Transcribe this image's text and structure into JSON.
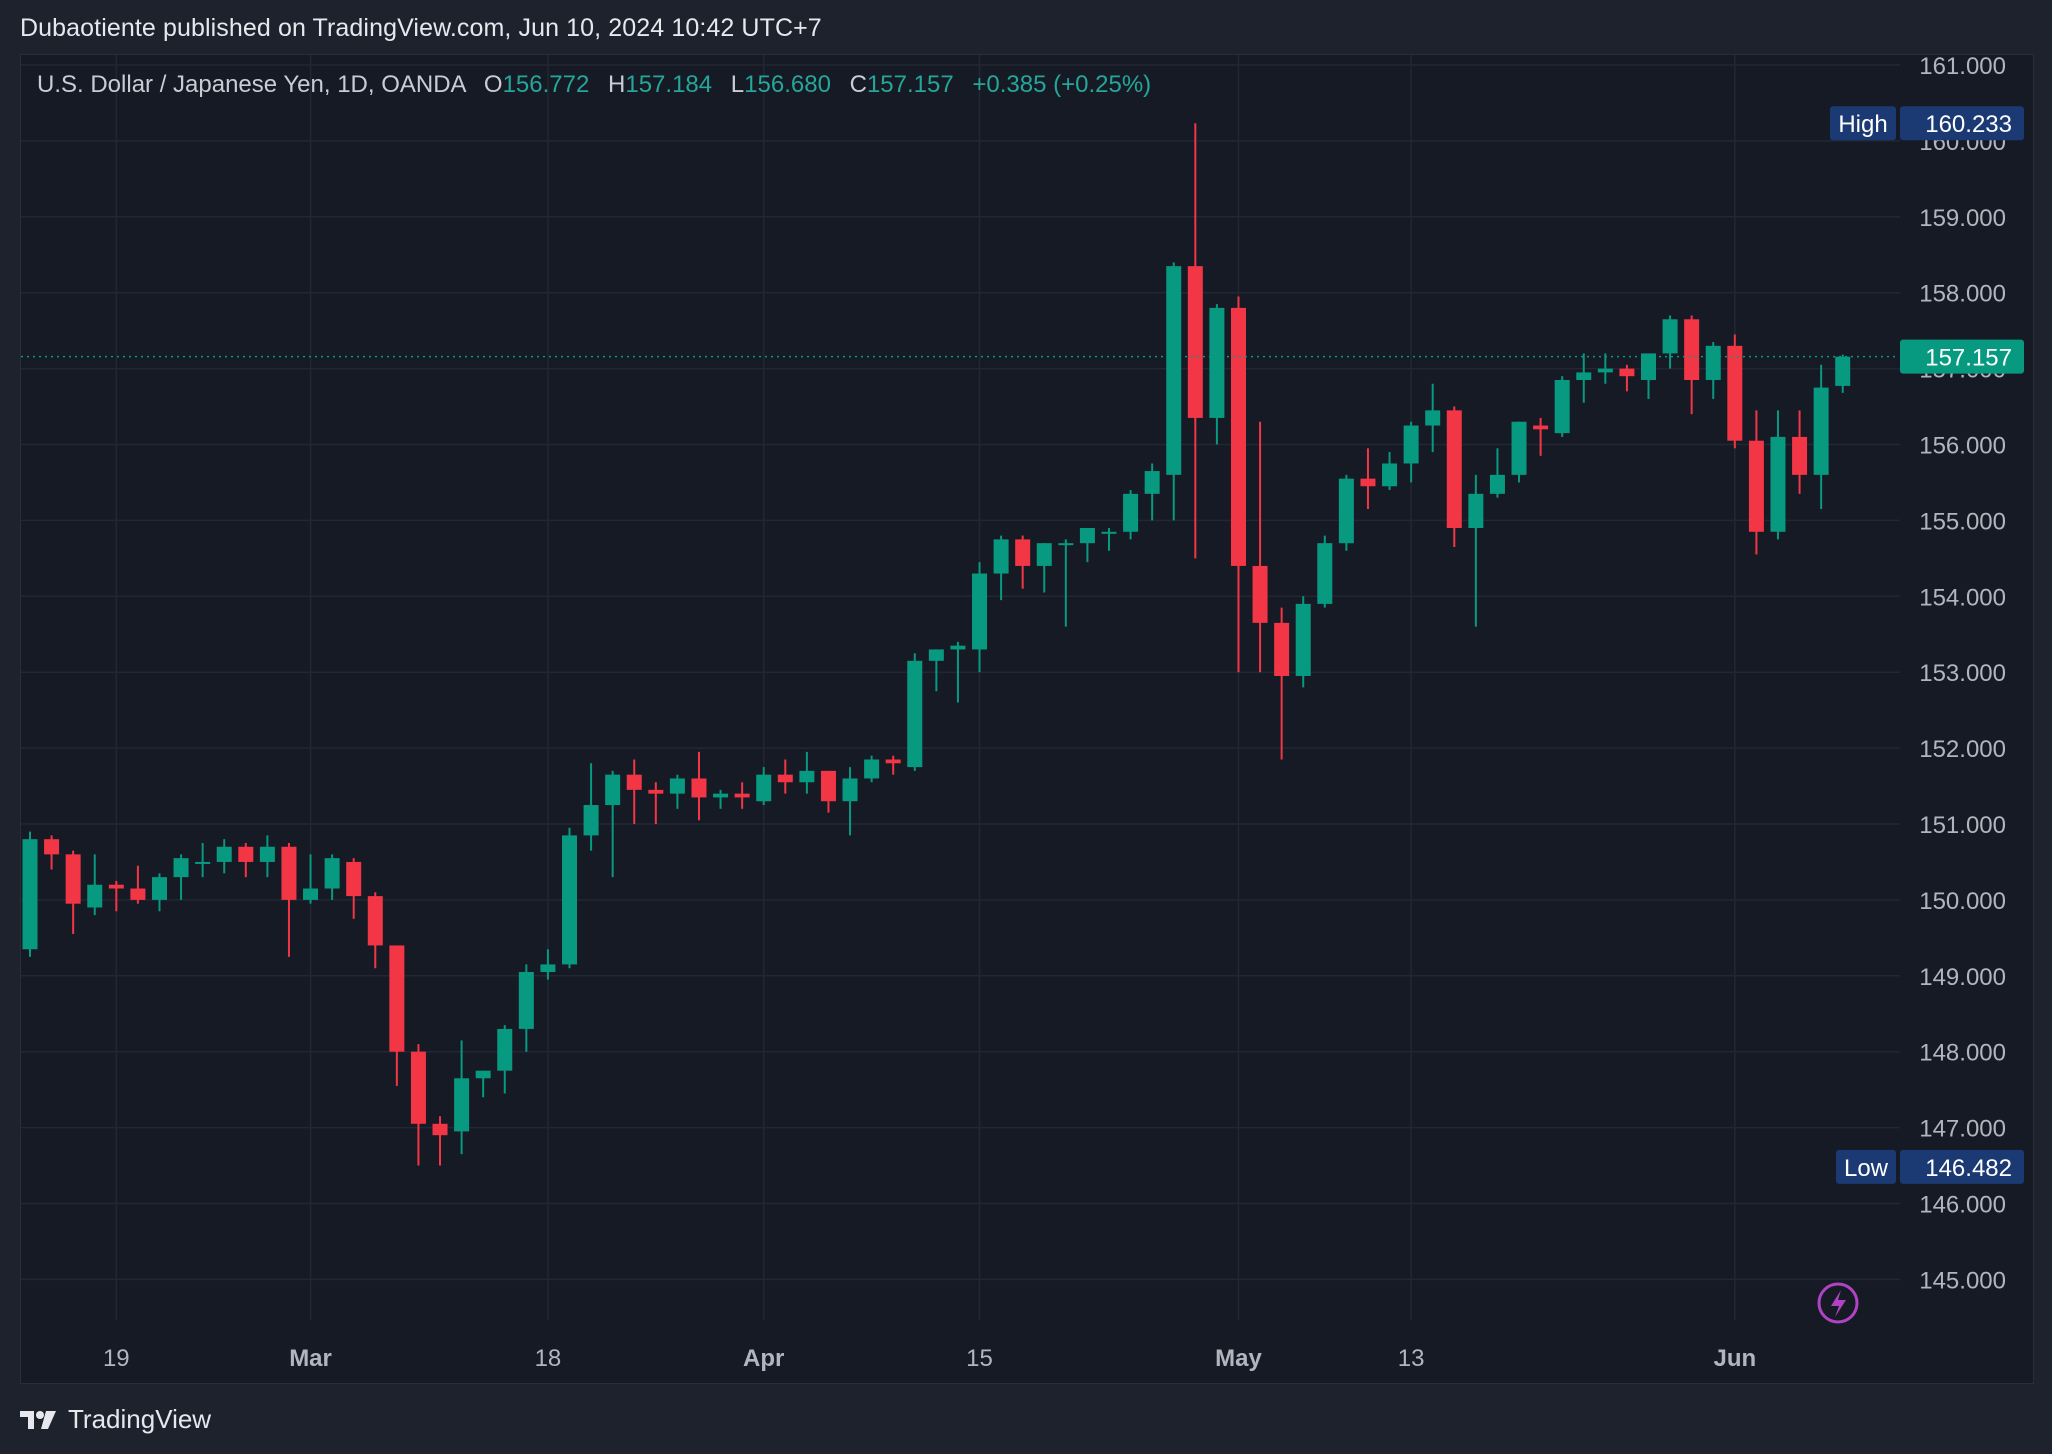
{
  "header": {
    "publisher_line": "Dubaotiente published on TradingView.com, Jun 10, 2024 10:42 UTC+7"
  },
  "legend": {
    "symbol": "U.S. Dollar / Japanese Yen, 1D, OANDA",
    "o_label": "O",
    "o_value": "156.772",
    "h_label": "H",
    "h_value": "157.184",
    "l_label": "L",
    "l_value": "156.680",
    "c_label": "C",
    "c_value": "157.157",
    "change": "+0.385 (+0.25%)"
  },
  "badges": {
    "high_label": "High",
    "high_value": "160.233",
    "low_label": "Low",
    "low_value": "146.482",
    "last_price": "157.157"
  },
  "footer": {
    "brand": "TradingView"
  },
  "colors": {
    "up": "#089981",
    "down": "#f23645",
    "background": "#161a25",
    "grid": "#232733",
    "badge": "#1b3a73",
    "last_price": "#089981"
  },
  "chart_data": {
    "type": "candlestick",
    "ylim": [
      144.2,
      161.4
    ],
    "y_ticks": [
      "145.000",
      "146.000",
      "147.000",
      "148.000",
      "149.000",
      "150.000",
      "151.000",
      "152.000",
      "153.000",
      "154.000",
      "155.000",
      "156.000",
      "157.000",
      "158.000",
      "159.000",
      "160.000",
      "161.000"
    ],
    "x_tick_labels": [
      {
        "label": "19",
        "index": 4
      },
      {
        "label": "Mar",
        "index": 13
      },
      {
        "label": "18",
        "index": 24
      },
      {
        "label": "Apr",
        "index": 34
      },
      {
        "label": "15",
        "index": 44
      },
      {
        "label": "May",
        "index": 56
      },
      {
        "label": "13",
        "index": 64
      },
      {
        "label": "Jun",
        "index": 79
      }
    ],
    "candles": [
      {
        "o": 149.35,
        "h": 150.9,
        "l": 149.25,
        "c": 150.8
      },
      {
        "o": 150.8,
        "h": 150.85,
        "l": 150.4,
        "c": 150.6
      },
      {
        "o": 150.6,
        "h": 150.65,
        "l": 149.55,
        "c": 149.95
      },
      {
        "o": 149.9,
        "h": 150.6,
        "l": 149.8,
        "c": 150.2
      },
      {
        "o": 150.2,
        "h": 150.25,
        "l": 149.85,
        "c": 150.15
      },
      {
        "o": 150.15,
        "h": 150.45,
        "l": 149.95,
        "c": 150.0
      },
      {
        "o": 150.0,
        "h": 150.35,
        "l": 149.85,
        "c": 150.3
      },
      {
        "o": 150.3,
        "h": 150.6,
        "l": 150.0,
        "c": 150.55
      },
      {
        "o": 150.5,
        "h": 150.75,
        "l": 150.3,
        "c": 150.5
      },
      {
        "o": 150.5,
        "h": 150.8,
        "l": 150.35,
        "c": 150.7
      },
      {
        "o": 150.7,
        "h": 150.75,
        "l": 150.3,
        "c": 150.5
      },
      {
        "o": 150.5,
        "h": 150.85,
        "l": 150.3,
        "c": 150.7
      },
      {
        "o": 150.7,
        "h": 150.75,
        "l": 149.25,
        "c": 150.0
      },
      {
        "o": 150.0,
        "h": 150.6,
        "l": 149.95,
        "c": 150.15
      },
      {
        "o": 150.15,
        "h": 150.6,
        "l": 150.0,
        "c": 150.55
      },
      {
        "o": 150.5,
        "h": 150.55,
        "l": 149.75,
        "c": 150.05
      },
      {
        "o": 150.05,
        "h": 150.1,
        "l": 149.1,
        "c": 149.4
      },
      {
        "o": 149.4,
        "h": 149.4,
        "l": 147.55,
        "c": 148.0
      },
      {
        "o": 148.0,
        "h": 148.1,
        "l": 146.5,
        "c": 147.05
      },
      {
        "o": 147.05,
        "h": 147.15,
        "l": 146.5,
        "c": 146.9
      },
      {
        "o": 146.95,
        "h": 148.15,
        "l": 146.65,
        "c": 147.65
      },
      {
        "o": 147.65,
        "h": 147.75,
        "l": 147.4,
        "c": 147.75
      },
      {
        "o": 147.75,
        "h": 148.35,
        "l": 147.45,
        "c": 148.3
      },
      {
        "o": 148.3,
        "h": 149.15,
        "l": 148.0,
        "c": 149.05
      },
      {
        "o": 149.05,
        "h": 149.35,
        "l": 148.95,
        "c": 149.15
      },
      {
        "o": 149.15,
        "h": 150.95,
        "l": 149.1,
        "c": 150.85
      },
      {
        "o": 150.85,
        "h": 151.8,
        "l": 150.65,
        "c": 151.25
      },
      {
        "o": 151.25,
        "h": 151.7,
        "l": 150.3,
        "c": 151.65
      },
      {
        "o": 151.65,
        "h": 151.85,
        "l": 151.0,
        "c": 151.45
      },
      {
        "o": 151.45,
        "h": 151.55,
        "l": 151.0,
        "c": 151.4
      },
      {
        "o": 151.4,
        "h": 151.65,
        "l": 151.2,
        "c": 151.6
      },
      {
        "o": 151.6,
        "h": 151.95,
        "l": 151.05,
        "c": 151.35
      },
      {
        "o": 151.35,
        "h": 151.45,
        "l": 151.2,
        "c": 151.4
      },
      {
        "o": 151.4,
        "h": 151.55,
        "l": 151.2,
        "c": 151.35
      },
      {
        "o": 151.3,
        "h": 151.75,
        "l": 151.25,
        "c": 151.65
      },
      {
        "o": 151.65,
        "h": 151.85,
        "l": 151.4,
        "c": 151.55
      },
      {
        "o": 151.55,
        "h": 151.95,
        "l": 151.4,
        "c": 151.7
      },
      {
        "o": 151.7,
        "h": 151.7,
        "l": 151.15,
        "c": 151.3
      },
      {
        "o": 151.3,
        "h": 151.75,
        "l": 150.85,
        "c": 151.6
      },
      {
        "o": 151.6,
        "h": 151.9,
        "l": 151.55,
        "c": 151.85
      },
      {
        "o": 151.85,
        "h": 151.9,
        "l": 151.65,
        "c": 151.8
      },
      {
        "o": 151.75,
        "h": 153.25,
        "l": 151.7,
        "c": 153.15
      },
      {
        "o": 153.15,
        "h": 153.3,
        "l": 152.75,
        "c": 153.3
      },
      {
        "o": 153.3,
        "h": 153.4,
        "l": 152.6,
        "c": 153.35
      },
      {
        "o": 153.3,
        "h": 154.45,
        "l": 153.0,
        "c": 154.3
      },
      {
        "o": 154.3,
        "h": 154.8,
        "l": 153.95,
        "c": 154.75
      },
      {
        "o": 154.75,
        "h": 154.8,
        "l": 154.1,
        "c": 154.4
      },
      {
        "o": 154.4,
        "h": 154.7,
        "l": 154.05,
        "c": 154.7
      },
      {
        "o": 154.7,
        "h": 154.75,
        "l": 153.6,
        "c": 154.7
      },
      {
        "o": 154.7,
        "h": 154.9,
        "l": 154.45,
        "c": 154.9
      },
      {
        "o": 154.85,
        "h": 154.9,
        "l": 154.6,
        "c": 154.85
      },
      {
        "o": 154.85,
        "h": 155.4,
        "l": 154.75,
        "c": 155.35
      },
      {
        "o": 155.35,
        "h": 155.75,
        "l": 155.0,
        "c": 155.65
      },
      {
        "o": 155.6,
        "h": 158.4,
        "l": 155.0,
        "c": 158.35
      },
      {
        "o": 158.35,
        "h": 160.233,
        "l": 154.5,
        "c": 156.35
      },
      {
        "o": 156.35,
        "h": 157.85,
        "l": 156.0,
        "c": 157.8
      },
      {
        "o": 157.8,
        "h": 157.95,
        "l": 153.0,
        "c": 154.4
      },
      {
        "o": 154.4,
        "h": 156.3,
        "l": 153.0,
        "c": 153.65
      },
      {
        "o": 153.65,
        "h": 153.85,
        "l": 151.85,
        "c": 152.95
      },
      {
        "o": 152.95,
        "h": 154.0,
        "l": 152.8,
        "c": 153.9
      },
      {
        "o": 153.9,
        "h": 154.8,
        "l": 153.85,
        "c": 154.7
      },
      {
        "o": 154.7,
        "h": 155.6,
        "l": 154.6,
        "c": 155.55
      },
      {
        "o": 155.55,
        "h": 155.95,
        "l": 155.15,
        "c": 155.45
      },
      {
        "o": 155.45,
        "h": 155.9,
        "l": 155.4,
        "c": 155.75
      },
      {
        "o": 155.75,
        "h": 156.3,
        "l": 155.5,
        "c": 156.25
      },
      {
        "o": 156.25,
        "h": 156.8,
        "l": 155.9,
        "c": 156.45
      },
      {
        "o": 156.45,
        "h": 156.5,
        "l": 154.65,
        "c": 154.9
      },
      {
        "o": 154.9,
        "h": 155.6,
        "l": 153.6,
        "c": 155.35
      },
      {
        "o": 155.35,
        "h": 155.95,
        "l": 155.3,
        "c": 155.6
      },
      {
        "o": 155.6,
        "h": 156.3,
        "l": 155.5,
        "c": 156.3
      },
      {
        "o": 156.25,
        "h": 156.35,
        "l": 155.85,
        "c": 156.2
      },
      {
        "o": 156.15,
        "h": 156.9,
        "l": 156.1,
        "c": 156.85
      },
      {
        "o": 156.85,
        "h": 157.2,
        "l": 156.55,
        "c": 156.95
      },
      {
        "o": 156.95,
        "h": 157.2,
        "l": 156.8,
        "c": 157.0
      },
      {
        "o": 157.0,
        "h": 157.05,
        "l": 156.7,
        "c": 156.9
      },
      {
        "o": 156.85,
        "h": 157.2,
        "l": 156.6,
        "c": 157.2
      },
      {
        "o": 157.2,
        "h": 157.7,
        "l": 157.0,
        "c": 157.65
      },
      {
        "o": 157.65,
        "h": 157.7,
        "l": 156.4,
        "c": 156.85
      },
      {
        "o": 156.85,
        "h": 157.35,
        "l": 156.6,
        "c": 157.3
      },
      {
        "o": 157.3,
        "h": 157.45,
        "l": 155.95,
        "c": 156.05
      },
      {
        "o": 156.05,
        "h": 156.45,
        "l": 154.55,
        "c": 154.85
      },
      {
        "o": 154.85,
        "h": 156.45,
        "l": 154.75,
        "c": 156.1
      },
      {
        "o": 156.1,
        "h": 156.45,
        "l": 155.35,
        "c": 155.6
      },
      {
        "o": 155.6,
        "h": 157.05,
        "l": 155.15,
        "c": 156.75
      },
      {
        "o": 156.772,
        "h": 157.184,
        "l": 156.68,
        "c": 157.157
      }
    ]
  }
}
